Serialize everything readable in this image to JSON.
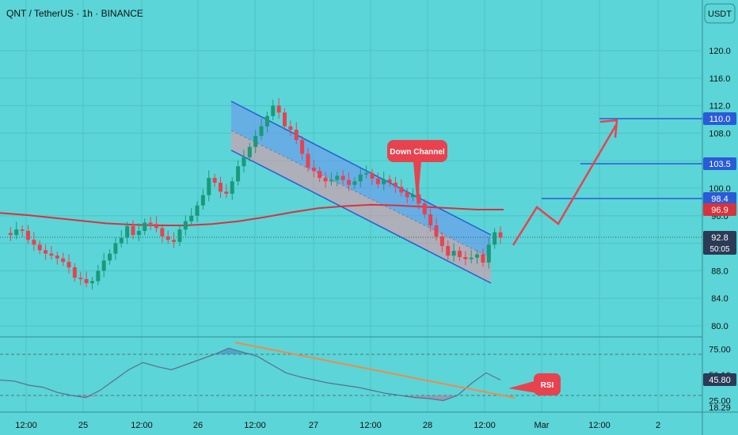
{
  "header": {
    "title": "QNT / TetherUS · 1h · BINANCE"
  },
  "currency_button": "USDT",
  "colors": {
    "background": "#5bd5d7",
    "up": "#1a9a78",
    "down": "#e8424f",
    "ma": "#d7333e",
    "channel_line": "#2a5bd7",
    "channel_fill_top": "#6e8ff0",
    "channel_fill_bottom": "#f08fa0",
    "trend_line": "#f08a4b",
    "arrow": "#e8424f",
    "hline": "#2a5bd7"
  },
  "price_axis": {
    "ticks": [
      "120.0",
      "116.0",
      "112.0",
      "108.0",
      "104.0",
      "100.0",
      "96.0",
      "92.0",
      "88.0",
      "84.0",
      "80.0"
    ]
  },
  "rsi_axis": {
    "ticks": [
      "75.00",
      "50.16",
      "45.80",
      "25.00",
      "18.29"
    ]
  },
  "time_axis": {
    "ticks": [
      "12:00",
      "25",
      "12:00",
      "26",
      "12:00",
      "27",
      "12:00",
      "28",
      "12:00",
      "Mar",
      "12:00",
      "2"
    ]
  },
  "labels": {
    "level_110": "110.0",
    "level_103": "103.5",
    "level_98": "98.4",
    "level_96": "96.9",
    "current_price": "92.8",
    "countdown": "50:05",
    "rsi_current": "45.80",
    "down_channel": "Down Channel",
    "rsi": "RSI"
  },
  "chart_data": {
    "type": "candlestick",
    "title": "QNT / TetherUS · 1h · BINANCE",
    "x_ticks": [
      "12:00",
      "25",
      "12:00",
      "26",
      "12:00",
      "27",
      "12:00",
      "28",
      "12:00",
      "Mar",
      "12:00",
      "2"
    ],
    "y_ticks": [
      120,
      116,
      112,
      108,
      104,
      100,
      96,
      92,
      88,
      84,
      80
    ],
    "ylim": [
      78.5,
      125
    ],
    "close_path": [
      93.5,
      93.2,
      94,
      93.8,
      92.5,
      91.8,
      91,
      90.5,
      90.2,
      89.8,
      89.3,
      88.5,
      87,
      86.8,
      86.2,
      86.5,
      88,
      89.5,
      90.5,
      92,
      92.8,
      94.5,
      93.2,
      93.8,
      95,
      94.8,
      94.2,
      93,
      92.5,
      92.2,
      94,
      95.2,
      96,
      97.5,
      99,
      101.5,
      100.8,
      99.5,
      99.2,
      101,
      103.2,
      104.5,
      106,
      107.6,
      109,
      110.5,
      112,
      111,
      109,
      108.5,
      107,
      105,
      103,
      102.5,
      101.5,
      101,
      101.2,
      101.8,
      101.2,
      100.5,
      101,
      102,
      102.2,
      101.4,
      100.6,
      101.3,
      100.8,
      100.2,
      99.4,
      98.7,
      99.1,
      97.8,
      96.2,
      94.6,
      93,
      91.6,
      90.2,
      90.9,
      90,
      89.7,
      89.9,
      90.4,
      89.2,
      91.8,
      93.6,
      92.8
    ],
    "moving_average": {
      "name": "",
      "values": [
        96.4,
        96.1,
        95.7,
        95.3,
        94.9,
        94.7,
        94.6,
        94.6,
        94.8,
        95.2,
        95.8,
        96.5,
        97.1,
        97.4,
        97.6,
        97.5,
        97.3,
        97.1,
        96.9,
        96.9
      ]
    },
    "rsi": {
      "x_range": "full",
      "values": [
        45,
        44,
        40,
        38,
        33,
        30,
        28,
        35,
        45,
        55,
        62,
        58,
        55,
        60,
        65,
        70,
        76,
        72,
        68,
        60,
        52,
        48,
        45,
        42,
        40,
        38,
        35,
        32,
        30,
        28,
        27,
        25,
        30,
        42,
        52,
        45
      ],
      "ylim": [
        15,
        80
      ]
    },
    "levels": [
      110.0,
      103.5,
      98.4,
      96.9
    ],
    "current_price": 92.8,
    "annotations": [
      "Down Channel",
      "RSI"
    ]
  }
}
